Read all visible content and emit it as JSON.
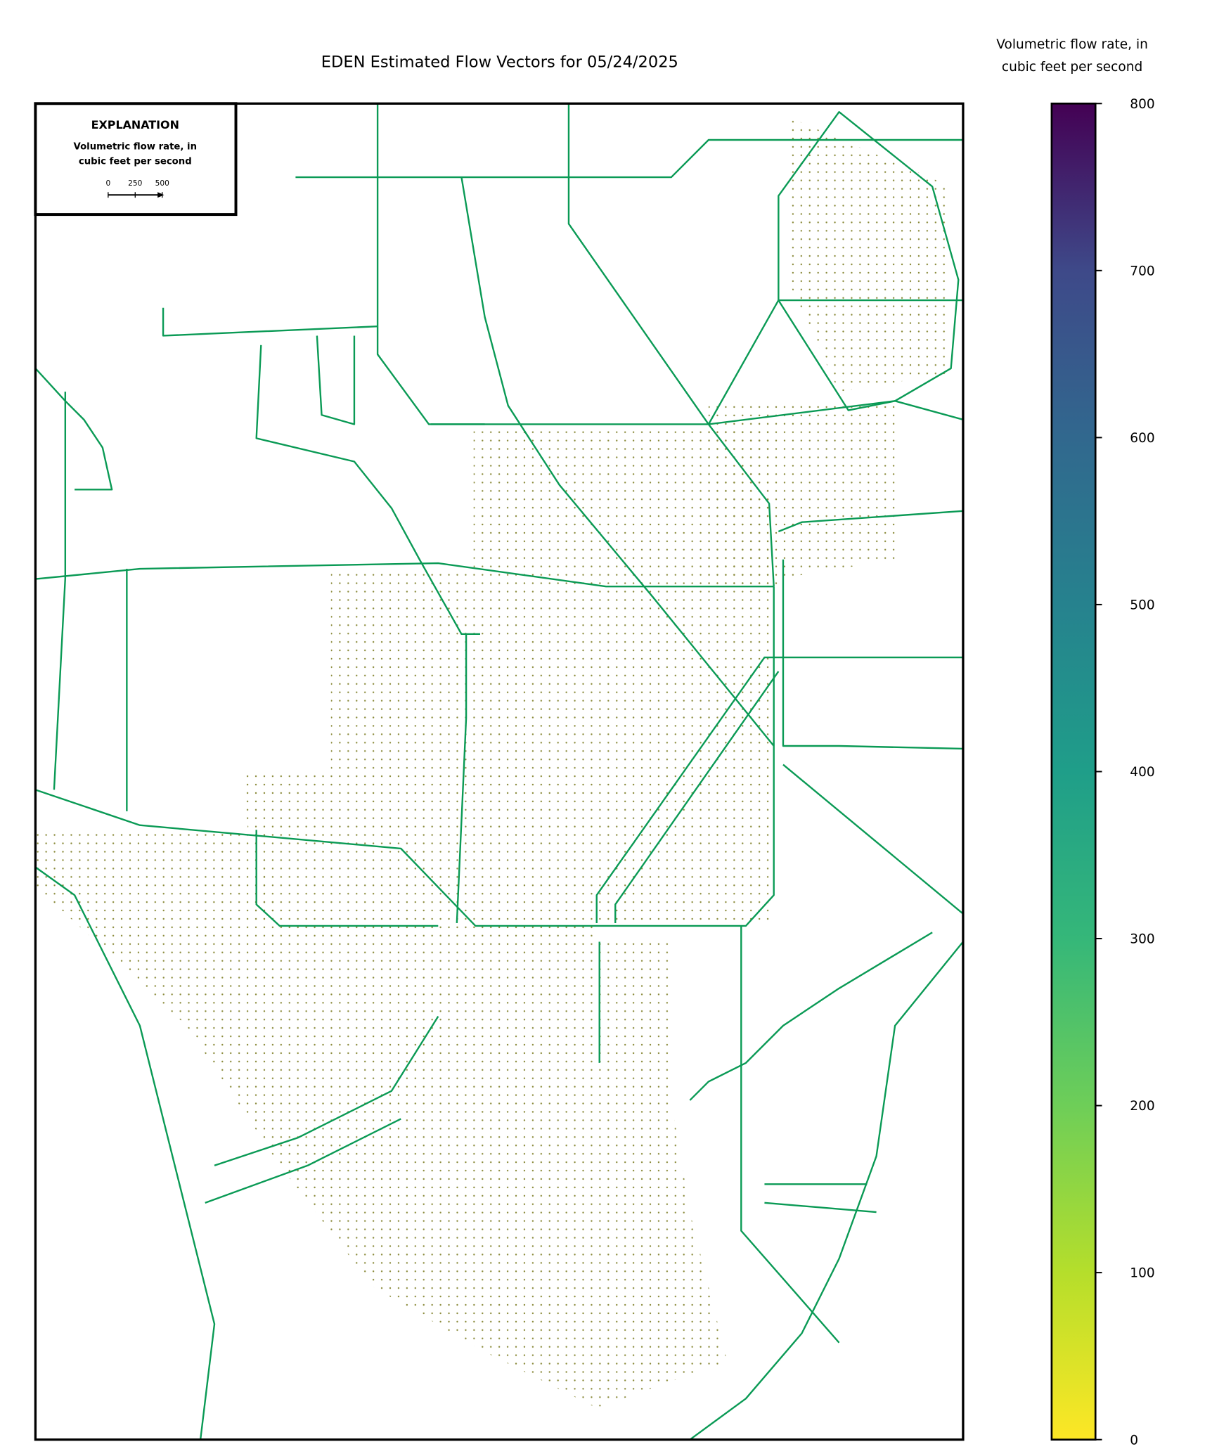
{
  "title": "EDEN Estimated Flow Vectors for 05/24/2025",
  "colorbar": {
    "label": [
      "Volumetric flow rate, in",
      "cubic feet per second"
    ],
    "lim": [
      0,
      800
    ],
    "ticks": [
      0,
      100,
      200,
      300,
      400,
      500,
      600,
      700,
      800
    ]
  },
  "explanation": {
    "title": "EXPLANATION",
    "label": [
      "Volumetric flow rate, in",
      "cubic feet per second"
    ],
    "scale_ticks": [
      0,
      250,
      500
    ]
  }
}
